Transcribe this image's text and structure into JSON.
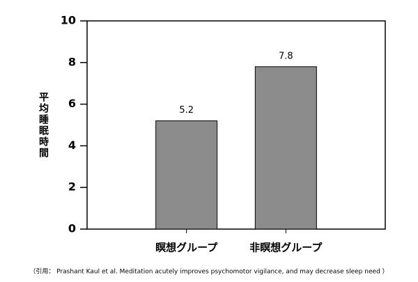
{
  "chart_data": {
    "type": "bar",
    "ylabel": "平均睡眠時間",
    "categories": [
      "瞑想グループ",
      "非瞑想グループ"
    ],
    "values": [
      5.2,
      7.8
    ],
    "color": "#8c8c8c",
    "ylim": [
      0,
      10
    ],
    "yticks": [
      0,
      2,
      4,
      6,
      8,
      10
    ],
    "note": "（引用： Prashant Kaul et al. Meditation acutely improves psychomotor vigilance, and may decrease sleep need ）"
  }
}
